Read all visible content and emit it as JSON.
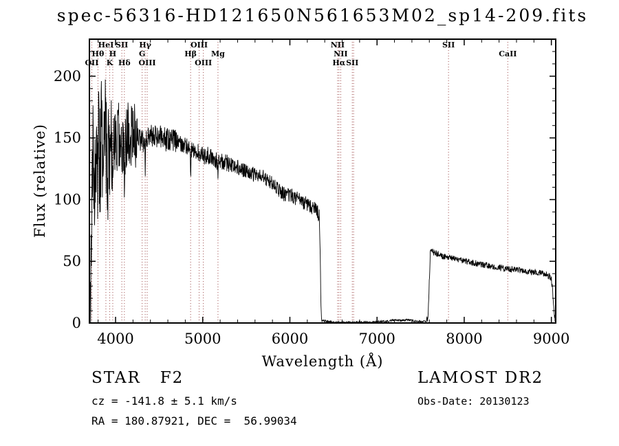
{
  "title": "spec-56316-HD121650N561653M02_sp14-209.fits",
  "chart_data": {
    "type": "line",
    "title": "spec-56316-HD121650N561653M02_sp14-209.fits",
    "xlabel": "Wavelength (Å)",
    "ylabel": "Flux (relative)",
    "xlim": [
      3700,
      9050
    ],
    "ylim": [
      0,
      230
    ],
    "xticks": [
      4000,
      5000,
      6000,
      7000,
      8000,
      9000
    ],
    "yticks": [
      0,
      50,
      100,
      150,
      200
    ],
    "x_minor_step": 200,
    "y_minor_step": 10,
    "grid": false,
    "legend": "none",
    "line_color": "#000000",
    "spectral_line_color": "#9e4b4b",
    "spectral_lines": [
      {
        "label": "OII",
        "wavelength": 3727,
        "row": 3
      },
      {
        "label": "Hθ",
        "wavelength": 3798,
        "row": 2
      },
      {
        "label": "HeI",
        "wavelength": 3889,
        "row": 1
      },
      {
        "label": "K",
        "wavelength": 3933,
        "row": 3
      },
      {
        "label": "H",
        "wavelength": 3968,
        "row": 2
      },
      {
        "label": "SII",
        "wavelength": 4072,
        "row": 1
      },
      {
        "label": "Hδ",
        "wavelength": 4101,
        "row": 3
      },
      {
        "label": "G",
        "wavelength": 4305,
        "row": 2
      },
      {
        "label": "Hγ",
        "wavelength": 4340,
        "row": 1
      },
      {
        "label": "OIII",
        "wavelength": 4363,
        "row": 3
      },
      {
        "label": "Hβ",
        "wavelength": 4861,
        "row": 2
      },
      {
        "label": "OIII",
        "wavelength": 4959,
        "row": 1
      },
      {
        "label": "OIII",
        "wavelength": 5007,
        "row": 3
      },
      {
        "label": "Mg",
        "wavelength": 5175,
        "row": 2
      },
      {
        "label": "NII",
        "wavelength": 6548,
        "row": 1
      },
      {
        "label": "Hα",
        "wavelength": 6563,
        "row": 3
      },
      {
        "label": "NII",
        "wavelength": 6583,
        "row": 2
      },
      {
        "label": "SII",
        "wavelength": 6716,
        "row": 3
      },
      {
        "label": "",
        "wavelength": 6731,
        "row": 0
      },
      {
        "label": "SII",
        "wavelength": 7820,
        "row": 1
      },
      {
        "label": "CaII",
        "wavelength": 8500,
        "row": 2
      }
    ],
    "spectrum": {
      "description": "Black flux trace: noisy blue arm ~150 declining to ~90, gap at 6360-7590 near zero, red arm ~60 declining to ~40, edge drops at both chip boundaries",
      "seed": 20130123,
      "step": 3,
      "anchors": [
        [
          3705,
          0
        ],
        [
          3715,
          25
        ],
        [
          3725,
          70
        ],
        [
          3735,
          115
        ],
        [
          3745,
          150
        ],
        [
          3760,
          100
        ],
        [
          3775,
          140
        ],
        [
          3790,
          120
        ],
        [
          3805,
          155
        ],
        [
          3820,
          130
        ],
        [
          3840,
          160
        ],
        [
          3860,
          140
        ],
        [
          3880,
          155
        ],
        [
          3900,
          135
        ],
        [
          3920,
          125
        ],
        [
          3940,
          140
        ],
        [
          3960,
          130
        ],
        [
          3980,
          150
        ],
        [
          4000,
          148
        ],
        [
          4025,
          152
        ],
        [
          4050,
          150
        ],
        [
          4075,
          148
        ],
        [
          4096,
          145
        ],
        [
          4101,
          122
        ],
        [
          4107,
          145
        ],
        [
          4130,
          152
        ],
        [
          4160,
          150
        ],
        [
          4200,
          155
        ],
        [
          4250,
          150
        ],
        [
          4300,
          147
        ],
        [
          4334,
          146
        ],
        [
          4340,
          125
        ],
        [
          4347,
          146
        ],
        [
          4380,
          150
        ],
        [
          4430,
          152
        ],
        [
          4480,
          149
        ],
        [
          4530,
          151
        ],
        [
          4580,
          148
        ],
        [
          4640,
          150
        ],
        [
          4700,
          147
        ],
        [
          4760,
          144
        ],
        [
          4820,
          143
        ],
        [
          4854,
          141
        ],
        [
          4861,
          115
        ],
        [
          4868,
          141
        ],
        [
          4900,
          140
        ],
        [
          4950,
          138
        ],
        [
          5007,
          135
        ],
        [
          5060,
          136
        ],
        [
          5120,
          133
        ],
        [
          5168,
          131
        ],
        [
          5175,
          116
        ],
        [
          5183,
          131
        ],
        [
          5230,
          131
        ],
        [
          5300,
          129
        ],
        [
          5380,
          127
        ],
        [
          5460,
          124
        ],
        [
          5540,
          122
        ],
        [
          5620,
          120
        ],
        [
          5700,
          118
        ],
        [
          5780,
          114
        ],
        [
          5860,
          108
        ],
        [
          5940,
          104
        ],
        [
          6020,
          103
        ],
        [
          6100,
          100
        ],
        [
          6180,
          97
        ],
        [
          6250,
          94
        ],
        [
          6310,
          91
        ],
        [
          6338,
          86
        ],
        [
          6348,
          55
        ],
        [
          6356,
          15
        ],
        [
          6364,
          2
        ],
        [
          6500,
          0.5
        ],
        [
          6800,
          0.5
        ],
        [
          7000,
          0.8
        ],
        [
          7120,
          1.5
        ],
        [
          7200,
          2.5
        ],
        [
          7280,
          2
        ],
        [
          7360,
          2.5
        ],
        [
          7440,
          1.5
        ],
        [
          7520,
          1
        ],
        [
          7565,
          1.5
        ],
        [
          7585,
          5
        ],
        [
          7600,
          35
        ],
        [
          7612,
          58
        ],
        [
          7625,
          60
        ],
        [
          7650,
          57
        ],
        [
          7700,
          56
        ],
        [
          7760,
          54
        ],
        [
          7820,
          53
        ],
        [
          7880,
          52
        ],
        [
          7950,
          51
        ],
        [
          8020,
          50
        ],
        [
          8090,
          49
        ],
        [
          8160,
          48
        ],
        [
          8230,
          47
        ],
        [
          8300,
          46
        ],
        [
          8380,
          45
        ],
        [
          8460,
          44
        ],
        [
          8540,
          43.5
        ],
        [
          8620,
          43
        ],
        [
          8700,
          42
        ],
        [
          8780,
          41
        ],
        [
          8860,
          40.5
        ],
        [
          8930,
          40
        ],
        [
          8970,
          38
        ],
        [
          9000,
          36
        ],
        [
          9015,
          25
        ],
        [
          9030,
          8
        ],
        [
          9045,
          2
        ]
      ],
      "noise_segments": [
        [
          3705,
          3960,
          50
        ],
        [
          3960,
          4250,
          28
        ],
        [
          4250,
          4700,
          10
        ],
        [
          4700,
          5300,
          7
        ],
        [
          5300,
          6338,
          6
        ],
        [
          6338,
          7570,
          0.8
        ],
        [
          7570,
          7600,
          3
        ],
        [
          7600,
          9050,
          2.5
        ]
      ]
    }
  },
  "annotations": {
    "class_line": "STAR   F2",
    "cz_line": "cz = -141.8 ± 5.1 km/s",
    "radec_line": "RA = 180.87921, DEC =  56.99034",
    "survey_line": "LAMOST DR2",
    "obsdate_line": "Obs-Date: 20130123"
  }
}
